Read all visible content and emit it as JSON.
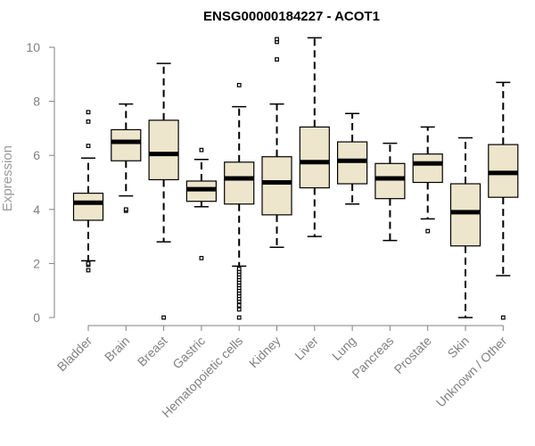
{
  "chart_data": {
    "type": "boxplot",
    "title": "ENSG00000184227 - ACOT1",
    "xlabel": "",
    "ylabel": "Expression",
    "ylim": [
      0,
      10
    ],
    "yticks": [
      0,
      2,
      4,
      6,
      8,
      10
    ],
    "grid": false,
    "colors": {
      "box_fill": "#ede6cc",
      "box_stroke": "#000000",
      "axis": "#808080",
      "median": "#000000"
    },
    "categories": [
      "Bladder",
      "Brain",
      "Breast",
      "Gastric",
      "Hematopoietic cells",
      "Kidney",
      "Liver",
      "Lung",
      "Pancreas",
      "Prostate",
      "Skin",
      "Unknown / Other"
    ],
    "boxes": [
      {
        "name": "Bladder",
        "whisker_low": 2.1,
        "q1": 3.6,
        "median": 4.25,
        "q3": 4.6,
        "whisker_high": 5.9,
        "outliers": [
          1.75,
          1.95,
          2.0,
          6.35,
          7.25,
          7.6
        ]
      },
      {
        "name": "Brain",
        "whisker_low": 4.5,
        "q1": 5.8,
        "median": 6.5,
        "q3": 6.95,
        "whisker_high": 7.9,
        "outliers": [
          3.95,
          4.0
        ]
      },
      {
        "name": "Breast",
        "whisker_low": 2.8,
        "q1": 5.1,
        "median": 6.05,
        "q3": 7.3,
        "whisker_high": 9.4,
        "outliers": [
          0.0
        ]
      },
      {
        "name": "Gastric",
        "whisker_low": 4.1,
        "q1": 4.3,
        "median": 4.75,
        "q3": 5.05,
        "whisker_high": 5.85,
        "outliers": [
          2.2,
          6.2
        ]
      },
      {
        "name": "Hematopoietic cells",
        "whisker_low": 1.9,
        "q1": 4.2,
        "median": 5.15,
        "q3": 5.75,
        "whisker_high": 7.8,
        "outliers": [
          0.0,
          0.3,
          0.45,
          0.6,
          0.7,
          0.8,
          0.9,
          1.0,
          1.1,
          1.2,
          1.3,
          1.4,
          1.5,
          1.6,
          1.7,
          1.8,
          8.6
        ]
      },
      {
        "name": "Kidney",
        "whisker_low": 2.6,
        "q1": 3.8,
        "median": 5.0,
        "q3": 5.95,
        "whisker_high": 7.9,
        "outliers": [
          9.55,
          10.2,
          10.3
        ]
      },
      {
        "name": "Liver",
        "whisker_low": 3.0,
        "q1": 4.8,
        "median": 5.75,
        "q3": 7.05,
        "whisker_high": 10.35,
        "outliers": []
      },
      {
        "name": "Lung",
        "whisker_low": 4.2,
        "q1": 4.95,
        "median": 5.8,
        "q3": 6.5,
        "whisker_high": 7.55,
        "outliers": []
      },
      {
        "name": "Pancreas",
        "whisker_low": 2.85,
        "q1": 4.4,
        "median": 5.15,
        "q3": 5.7,
        "whisker_high": 6.45,
        "outliers": []
      },
      {
        "name": "Prostate",
        "whisker_low": 3.65,
        "q1": 5.0,
        "median": 5.7,
        "q3": 6.05,
        "whisker_high": 7.05,
        "outliers": [
          3.2
        ]
      },
      {
        "name": "Skin",
        "whisker_low": 0.0,
        "q1": 2.65,
        "median": 3.9,
        "q3": 4.95,
        "whisker_high": 6.65,
        "outliers": []
      },
      {
        "name": "Unknown / Other",
        "whisker_low": 1.55,
        "q1": 4.45,
        "median": 5.35,
        "q3": 6.4,
        "whisker_high": 8.7,
        "outliers": [
          0.0
        ]
      }
    ]
  }
}
